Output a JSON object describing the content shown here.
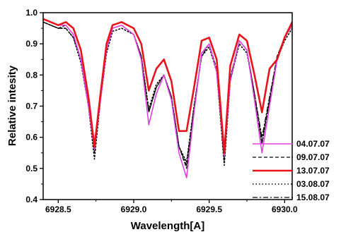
{
  "chart_data": {
    "type": "line",
    "title": "",
    "xlabel": "Wavelength[A]",
    "ylabel": "Relative intesity",
    "xlim": [
      6928.4,
      6930.05
    ],
    "ylim": [
      0.4,
      1.0
    ],
    "xticks": [
      6928.5,
      6929.0,
      6929.5,
      6930.0
    ],
    "xtick_labels": [
      "6928.5",
      "6929.0",
      "6929.5",
      "6930.0"
    ],
    "yticks": [
      0.4,
      0.5,
      0.6,
      0.7,
      0.8,
      0.9,
      1.0
    ],
    "ytick_labels": [
      "0.4",
      "0.5",
      "0.6",
      "0.7",
      "0.8",
      "0.9",
      "1.0"
    ],
    "grid": false,
    "legend_position": "bottom-right",
    "series": [
      {
        "name": "04.07.07",
        "color": "#e040e0",
        "dash": "solid",
        "x": [
          6928.4,
          6928.5,
          6928.55,
          6928.6,
          6928.65,
          6928.7,
          6928.74,
          6928.78,
          6928.82,
          6928.86,
          6928.92,
          6929.0,
          6929.05,
          6929.1,
          6929.15,
          6929.2,
          6929.25,
          6929.3,
          6929.35,
          6929.4,
          6929.45,
          6929.5,
          6929.55,
          6929.6,
          6929.64,
          6929.7,
          6929.75,
          6929.8,
          6929.85,
          6929.9,
          6929.95,
          6930.0,
          6930.05
        ],
        "y": [
          0.98,
          0.96,
          0.96,
          0.93,
          0.85,
          0.7,
          0.56,
          0.72,
          0.88,
          0.95,
          0.96,
          0.93,
          0.85,
          0.64,
          0.74,
          0.8,
          0.72,
          0.55,
          0.47,
          0.68,
          0.87,
          0.9,
          0.81,
          0.54,
          0.78,
          0.91,
          0.88,
          0.72,
          0.55,
          0.7,
          0.85,
          0.92,
          0.96
        ]
      },
      {
        "name": "09.07.07",
        "color": "#000000",
        "dash": "dashed",
        "x": [
          6928.4,
          6928.5,
          6928.55,
          6928.6,
          6928.65,
          6928.7,
          6928.74,
          6928.78,
          6928.82,
          6928.86,
          6928.92,
          6929.0,
          6929.05,
          6929.1,
          6929.15,
          6929.2,
          6929.25,
          6929.3,
          6929.35,
          6929.4,
          6929.45,
          6929.5,
          6929.55,
          6929.6,
          6929.64,
          6929.7,
          6929.75,
          6929.8,
          6929.85,
          6929.9,
          6929.95,
          6930.0,
          6930.05
        ],
        "y": [
          0.97,
          0.95,
          0.95,
          0.92,
          0.85,
          0.71,
          0.57,
          0.73,
          0.88,
          0.95,
          0.96,
          0.93,
          0.86,
          0.68,
          0.76,
          0.8,
          0.73,
          0.57,
          0.5,
          0.69,
          0.87,
          0.9,
          0.82,
          0.53,
          0.79,
          0.91,
          0.88,
          0.74,
          0.58,
          0.72,
          0.86,
          0.92,
          0.96
        ]
      },
      {
        "name": "13.07.07",
        "color": "#e8141c",
        "dash": "solid-thick",
        "x": [
          6928.4,
          6928.5,
          6928.55,
          6928.6,
          6928.65,
          6928.7,
          6928.74,
          6928.78,
          6928.82,
          6928.86,
          6928.92,
          6929.0,
          6929.05,
          6929.1,
          6929.15,
          6929.2,
          6929.25,
          6929.3,
          6929.35,
          6929.4,
          6929.45,
          6929.5,
          6929.55,
          6929.6,
          6929.64,
          6929.7,
          6929.75,
          6929.8,
          6929.85,
          6929.9,
          6929.95,
          6930.0,
          6930.05
        ],
        "y": [
          0.98,
          0.96,
          0.97,
          0.95,
          0.88,
          0.73,
          0.57,
          0.74,
          0.9,
          0.96,
          0.97,
          0.95,
          0.9,
          0.75,
          0.82,
          0.85,
          0.78,
          0.62,
          0.62,
          0.76,
          0.91,
          0.92,
          0.85,
          0.55,
          0.83,
          0.93,
          0.91,
          0.8,
          0.68,
          0.82,
          0.85,
          0.92,
          0.97
        ]
      },
      {
        "name": "03.08.07",
        "color": "#000000",
        "dash": "dotted",
        "x": [
          6928.4,
          6928.5,
          6928.55,
          6928.6,
          6928.65,
          6928.7,
          6928.74,
          6928.78,
          6928.82,
          6928.86,
          6928.92,
          6929.0,
          6929.05,
          6929.1,
          6929.15,
          6929.2,
          6929.25,
          6929.3,
          6929.35,
          6929.4,
          6929.45,
          6929.5,
          6929.55,
          6929.6,
          6929.64,
          6929.7,
          6929.75,
          6929.8,
          6929.85,
          6929.9,
          6929.95,
          6930.0,
          6930.05
        ],
        "y": [
          0.97,
          0.95,
          0.95,
          0.92,
          0.84,
          0.7,
          0.53,
          0.72,
          0.87,
          0.94,
          0.95,
          0.93,
          0.86,
          0.69,
          0.77,
          0.8,
          0.73,
          0.57,
          0.52,
          0.7,
          0.86,
          0.89,
          0.81,
          0.51,
          0.78,
          0.9,
          0.87,
          0.74,
          0.58,
          0.72,
          0.85,
          0.91,
          0.95
        ]
      },
      {
        "name": "15.08.07",
        "color": "#000000",
        "dash": "dashdot",
        "x": [
          6928.4,
          6928.5,
          6928.55,
          6928.6,
          6928.65,
          6928.7,
          6928.74,
          6928.78,
          6928.82,
          6928.86,
          6928.92,
          6929.0,
          6929.05,
          6929.1,
          6929.15,
          6929.2,
          6929.25,
          6929.3,
          6929.35,
          6929.4,
          6929.45,
          6929.5,
          6929.55,
          6929.6,
          6929.64,
          6929.7,
          6929.75,
          6929.8,
          6929.85,
          6929.9,
          6929.95,
          6930.0,
          6930.05
        ],
        "y": [
          0.97,
          0.95,
          0.96,
          0.93,
          0.85,
          0.71,
          0.55,
          0.73,
          0.88,
          0.95,
          0.96,
          0.93,
          0.86,
          0.68,
          0.76,
          0.8,
          0.73,
          0.57,
          0.51,
          0.7,
          0.86,
          0.9,
          0.81,
          0.52,
          0.79,
          0.91,
          0.88,
          0.74,
          0.6,
          0.73,
          0.86,
          0.92,
          0.96
        ]
      }
    ]
  }
}
